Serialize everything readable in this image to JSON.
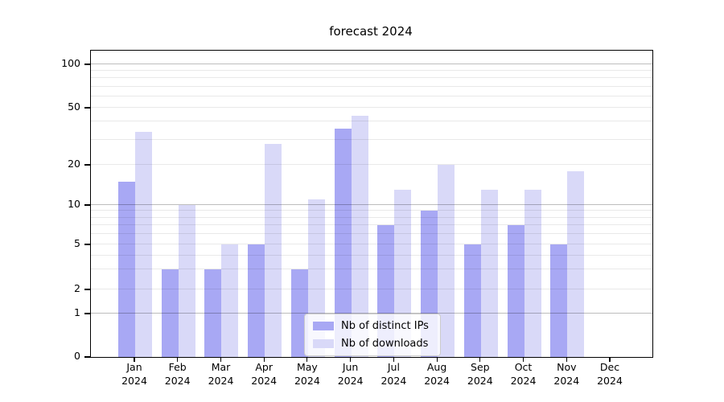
{
  "chart_data": {
    "type": "bar",
    "title": "forecast 2024",
    "categories": [
      "Jan 2024",
      "Feb 2024",
      "Mar 2024",
      "Apr 2024",
      "May 2024",
      "Jun 2024",
      "Jul 2024",
      "Aug 2024",
      "Sep 2024",
      "Oct 2024",
      "Nov 2024",
      "Dec 2024"
    ],
    "category_months": [
      "Jan",
      "Feb",
      "Mar",
      "Apr",
      "May",
      "Jun",
      "Jul",
      "Aug",
      "Sep",
      "Oct",
      "Nov",
      "Dec"
    ],
    "category_year": "2024",
    "series": [
      {
        "name": "Nb of distinct IPs",
        "color": "#a8a8f4",
        "values": [
          15,
          3,
          3,
          5,
          3,
          36,
          7,
          9,
          5,
          7,
          5,
          0
        ]
      },
      {
        "name": "Nb of downloads",
        "color": "#d9d9f8",
        "values": [
          34,
          10,
          5,
          28,
          11,
          44,
          13,
          20,
          13,
          13,
          18,
          0
        ]
      }
    ],
    "xlabel": "",
    "ylabel": "",
    "yscale": "symlog",
    "ylim": [
      0,
      120
    ],
    "ytick_labels": [
      "0",
      "1",
      "2",
      "5",
      "10",
      "20",
      "50",
      "100"
    ],
    "ytick_values": [
      0,
      1,
      2,
      5,
      10,
      20,
      50,
      100
    ],
    "major_grid_values": [
      1,
      10,
      100
    ],
    "minor_grid_values": [
      2,
      3,
      4,
      5,
      6,
      7,
      8,
      9,
      20,
      30,
      40,
      50,
      60,
      70,
      80,
      90
    ],
    "grid": true,
    "legend_position": "lower center"
  },
  "legend": {
    "items": [
      {
        "label": "Nb of distinct IPs",
        "color": "#a8a8f4"
      },
      {
        "label": "Nb of downloads",
        "color": "#d9d9f8"
      }
    ]
  }
}
